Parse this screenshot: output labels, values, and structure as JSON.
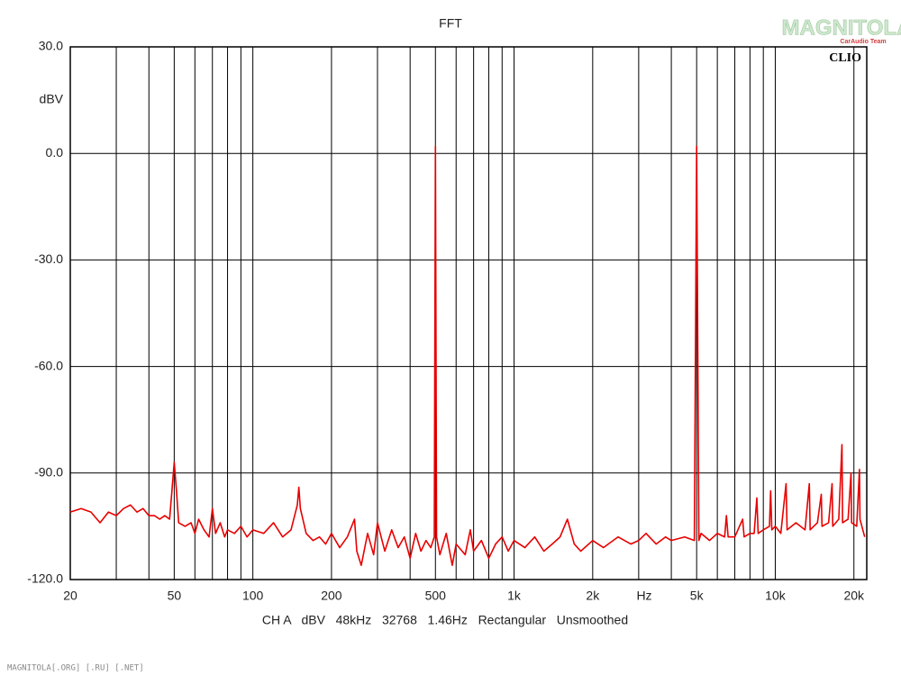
{
  "chart_data": {
    "type": "line",
    "title": "FFT",
    "xlabel": "Hz",
    "ylabel": "dBV",
    "settings_line": "CH A   dBV   48kHz   32768   1.46Hz   Rectangular   Unsmoothed",
    "brand": "CLIO",
    "xscale": "log",
    "grid": true,
    "xlim": [
      20,
      22400
    ],
    "ylim": [
      -120,
      30
    ],
    "yticks": [
      {
        "value": 30,
        "label": "30.0"
      },
      {
        "value": 0,
        "label": "0.0"
      },
      {
        "value": -30,
        "label": "-30.0"
      },
      {
        "value": -60,
        "label": "-60.0"
      },
      {
        "value": -90,
        "label": "-90.0"
      },
      {
        "value": -120,
        "label": "-120.0"
      }
    ],
    "xticks": [
      20,
      50,
      100,
      200,
      500,
      {
        "value": 1000,
        "label": "1k"
      },
      {
        "value": 2000,
        "label": "2k"
      },
      {
        "value": 5000,
        "label": "5k"
      },
      {
        "value": 10000,
        "label": "10k"
      },
      {
        "value": 20000,
        "label": "20k"
      }
    ],
    "xgrid": [
      30,
      40,
      60,
      70,
      80,
      90,
      300,
      400,
      600,
      700,
      800,
      900,
      3000,
      4000,
      6000,
      7000,
      8000,
      9000
    ],
    "x": [
      20,
      22,
      24,
      26,
      28,
      30,
      32,
      34,
      36,
      38,
      40,
      42,
      44,
      46,
      48,
      49,
      50,
      51,
      52,
      55,
      58,
      60,
      62,
      65,
      68,
      70,
      72,
      75,
      78,
      80,
      85,
      90,
      95,
      100,
      110,
      120,
      130,
      140,
      148,
      150,
      152,
      160,
      170,
      180,
      190,
      200,
      215,
      230,
      245,
      250,
      260,
      275,
      290,
      300,
      320,
      340,
      360,
      380,
      400,
      420,
      440,
      460,
      480,
      495,
      500,
      505,
      520,
      550,
      580,
      600,
      650,
      680,
      700,
      750,
      800,
      850,
      900,
      950,
      1000,
      1100,
      1200,
      1300,
      1400,
      1500,
      1600,
      1700,
      1800,
      2000,
      2200,
      2500,
      2800,
      3000,
      3200,
      3500,
      3800,
      4000,
      4500,
      4900,
      5000,
      5100,
      5200,
      5600,
      6000,
      6400,
      6500,
      6600,
      7000,
      7500,
      7600,
      8000,
      8300,
      8500,
      8600,
      9000,
      9500,
      9600,
      9700,
      10000,
      10500,
      11000,
      11100,
      12000,
      13000,
      13500,
      13600,
      14500,
      15000,
      15100,
      16000,
      16500,
      16600,
      17500,
      18000,
      18100,
      19000,
      19500,
      19600,
      20500,
      21000,
      21100,
      22000
    ],
    "series": [
      {
        "name": "CH A",
        "color": "#e80000",
        "values": [
          -101,
          -100,
          -101,
          -104,
          -101,
          -102,
          -100,
          -99,
          -101,
          -100,
          -102,
          -102,
          -103,
          -102,
          -103,
          -95,
          -87,
          -95,
          -104,
          -105,
          -104,
          -107,
          -103,
          -106,
          -108,
          -100,
          -107,
          -104,
          -108,
          -106,
          -107,
          -105,
          -108,
          -106,
          -107,
          -104,
          -108,
          -106,
          -99,
          -94,
          -100,
          -107,
          -109,
          -108,
          -110,
          -107,
          -111,
          -108,
          -103,
          -112,
          -116,
          -107,
          -113,
          -104,
          -112,
          -106,
          -111,
          -108,
          -114,
          -107,
          -112,
          -109,
          -111,
          -108,
          2,
          -108,
          -113,
          -107,
          -116,
          -110,
          -113,
          -106,
          -112,
          -109,
          -114,
          -110,
          -108,
          -112,
          -109,
          -111,
          -108,
          -112,
          -110,
          -108,
          -103,
          -110,
          -112,
          -109,
          -111,
          -108,
          -110,
          -109,
          -107,
          -110,
          -108,
          -109,
          -108,
          -109,
          2,
          -109,
          -107,
          -109,
          -107,
          -108,
          -102,
          -108,
          -108,
          -103,
          -108,
          -107,
          -107,
          -97,
          -107,
          -106,
          -105,
          -95,
          -106,
          -105,
          -107,
          -93,
          -106,
          -104,
          -106,
          -93,
          -106,
          -104,
          -96,
          -105,
          -104,
          -93,
          -105,
          -103,
          -82,
          -104,
          -103,
          -90,
          -104,
          -105,
          -89,
          -103,
          -108
        ]
      }
    ]
  },
  "watermark": {
    "logo": "MAGNITOLA",
    "tagline": "CarAudio Team",
    "footer": "MAGNITOLA[.ORG] [.RU] [.NET]"
  }
}
